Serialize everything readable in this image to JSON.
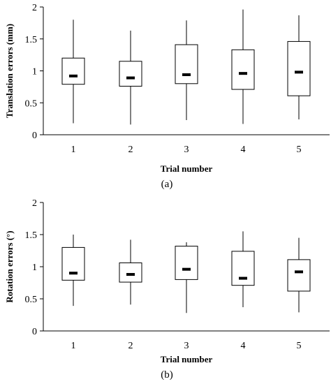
{
  "chart_data": [
    {
      "type": "box",
      "panel_label": "(a)",
      "xlabel": "Trial number",
      "ylabel": "Translation errors (mm)",
      "ylim": [
        0,
        2
      ],
      "yticks": [
        0,
        0.5,
        1,
        1.5,
        2
      ],
      "ytick_labels": [
        "0",
        "0.5",
        "1",
        "1.5",
        "2"
      ],
      "categories": [
        "1",
        "2",
        "3",
        "4",
        "5"
      ],
      "boxes": [
        {
          "min": 0.18,
          "q1": 0.79,
          "median": 0.92,
          "q3": 1.2,
          "max": 1.8
        },
        {
          "min": 0.16,
          "q1": 0.76,
          "median": 0.89,
          "q3": 1.15,
          "max": 1.63
        },
        {
          "min": 0.23,
          "q1": 0.8,
          "median": 0.94,
          "q3": 1.41,
          "max": 1.79
        },
        {
          "min": 0.17,
          "q1": 0.71,
          "median": 0.96,
          "q3": 1.33,
          "max": 1.96
        },
        {
          "min": 0.24,
          "q1": 0.61,
          "median": 0.98,
          "q3": 1.46,
          "max": 1.87
        }
      ]
    },
    {
      "type": "box",
      "panel_label": "(b)",
      "xlabel": "Trial number",
      "ylabel": "Rotation errors (°)",
      "ylim": [
        0,
        2
      ],
      "yticks": [
        0,
        0.5,
        1,
        1.5,
        2
      ],
      "ytick_labels": [
        "0",
        "0.5",
        "1",
        "1.5",
        "2"
      ],
      "categories": [
        "1",
        "2",
        "3",
        "4",
        "5"
      ],
      "boxes": [
        {
          "min": 0.39,
          "q1": 0.79,
          "median": 0.9,
          "q3": 1.3,
          "max": 1.5
        },
        {
          "min": 0.41,
          "q1": 0.76,
          "median": 0.88,
          "q3": 1.06,
          "max": 1.42
        },
        {
          "min": 0.28,
          "q1": 0.8,
          "median": 0.96,
          "q3": 1.32,
          "max": 1.38
        },
        {
          "min": 0.37,
          "q1": 0.71,
          "median": 0.82,
          "q3": 1.24,
          "max": 1.55
        },
        {
          "min": 0.29,
          "q1": 0.62,
          "median": 0.92,
          "q3": 1.11,
          "max": 1.45
        }
      ]
    }
  ]
}
